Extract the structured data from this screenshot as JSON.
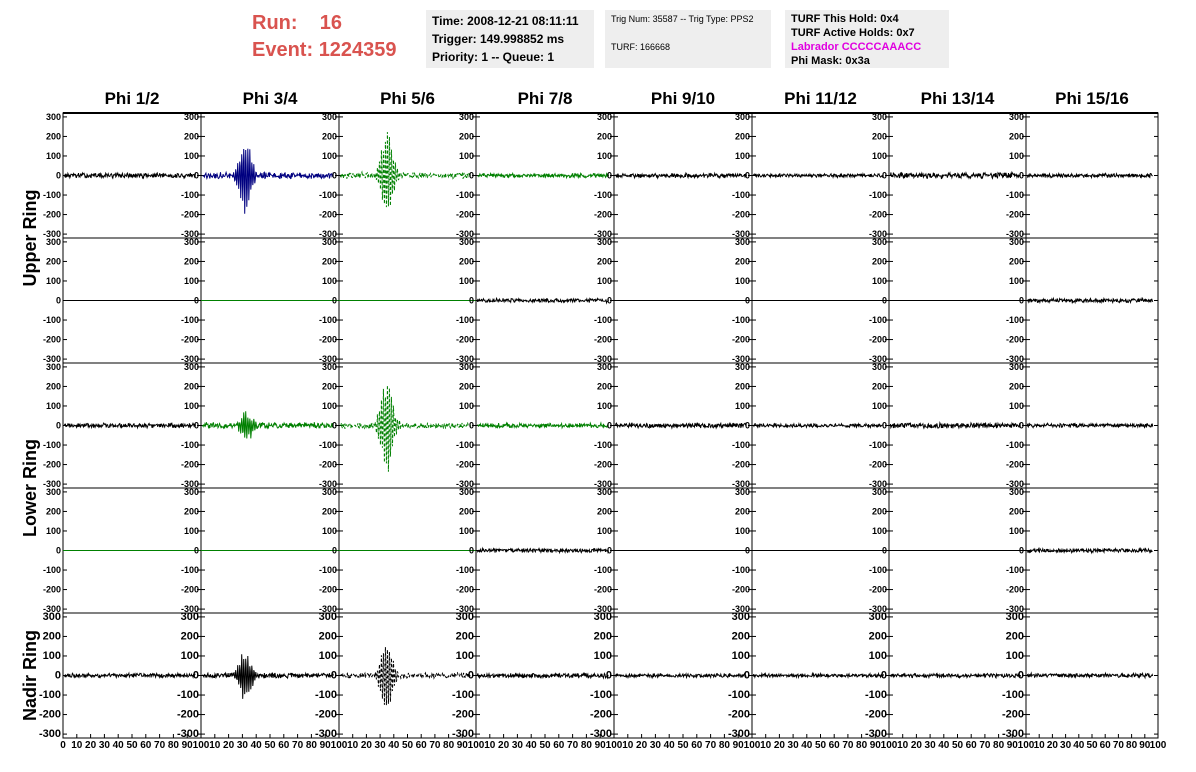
{
  "header": {
    "run_label": "Run:",
    "run_value": "16",
    "event_label": "Event:",
    "event_value": "1224359",
    "time": "Time: 2008-12-21 08:11:11",
    "trigger": "Trigger: 149.998852 ms",
    "priority": "Priority: 1 -- Queue: 1",
    "trig_num": "Trig Num: 35587 -- Trig Type: PPS2",
    "turf": "TURF: 166668",
    "turf_this_hold": "TURF This Hold: 0x4",
    "turf_active_holds": "TURF Active Holds: 0x7",
    "labrador": "Labrador CCCCCAAACC",
    "phi_mask": "Phi Mask: 0x3a"
  },
  "colors": {
    "header_red": "#d9534f",
    "magenta": "#e000e0",
    "blue": "#000080",
    "green": "#008000",
    "black": "#000000",
    "box_bg": "#eeeeee"
  },
  "chart_data": {
    "type": "line",
    "columns": [
      "Phi 1/2",
      "Phi 3/4",
      "Phi 5/6",
      "Phi 7/8",
      "Phi 9/10",
      "Phi 11/12",
      "Phi 13/14",
      "Phi 15/16"
    ],
    "row_groups": [
      "Upper Ring",
      "Lower Ring",
      "Nadir Ring"
    ],
    "xlim": [
      0,
      100
    ],
    "ylim": [
      -320,
      320
    ],
    "y_ticks": [
      300,
      200,
      100,
      0,
      -100,
      -200,
      -300
    ],
    "x_ticks": [
      "0",
      "10",
      "20",
      "30",
      "40",
      "50",
      "60",
      "70",
      "80",
      "90",
      "100"
    ],
    "panels": [
      {
        "row": 0,
        "col": 0,
        "color": "#000000",
        "style": "solid",
        "noise": 10,
        "pulse_center": 0,
        "pulse_amp": 0,
        "flat": false
      },
      {
        "row": 0,
        "col": 1,
        "color": "#000080",
        "style": "solid",
        "noise": 12,
        "pulse_center": 32,
        "pulse_amp": 210,
        "flat": false
      },
      {
        "row": 0,
        "col": 2,
        "color": "#008000",
        "style": "dashed",
        "noise": 12,
        "pulse_center": 35,
        "pulse_amp": 260,
        "flat": false
      },
      {
        "row": 0,
        "col": 3,
        "color": "#008000",
        "style": "solid",
        "noise": 8,
        "pulse_center": 0,
        "pulse_amp": 0,
        "flat": false
      },
      {
        "row": 0,
        "col": 4,
        "color": "#000000",
        "style": "solid",
        "noise": 9,
        "pulse_center": 0,
        "pulse_amp": 0,
        "flat": false
      },
      {
        "row": 0,
        "col": 5,
        "color": "#000000",
        "style": "solid",
        "noise": 7,
        "pulse_center": 0,
        "pulse_amp": 0,
        "flat": false
      },
      {
        "row": 0,
        "col": 6,
        "color": "#000000",
        "style": "solid",
        "noise": 12,
        "pulse_center": 0,
        "pulse_amp": 0,
        "flat": false
      },
      {
        "row": 0,
        "col": 7,
        "color": "#000000",
        "style": "solid",
        "noise": 8,
        "pulse_center": 0,
        "pulse_amp": 0,
        "flat": false
      },
      {
        "row": 1,
        "col": 0,
        "color": "#000000",
        "style": "solid",
        "noise": 0,
        "pulse_center": 0,
        "pulse_amp": 0,
        "flat": true
      },
      {
        "row": 1,
        "col": 1,
        "color": "#008000",
        "style": "solid",
        "noise": 0,
        "pulse_center": 0,
        "pulse_amp": 0,
        "flat": true
      },
      {
        "row": 1,
        "col": 2,
        "color": "#008000",
        "style": "solid",
        "noise": 0,
        "pulse_center": 0,
        "pulse_amp": 0,
        "flat": true
      },
      {
        "row": 1,
        "col": 3,
        "color": "#000000",
        "style": "solid",
        "noise": 8,
        "pulse_center": 0,
        "pulse_amp": 0,
        "flat": false
      },
      {
        "row": 1,
        "col": 4,
        "color": "#000000",
        "style": "solid",
        "noise": 0,
        "pulse_center": 0,
        "pulse_amp": 0,
        "flat": true
      },
      {
        "row": 1,
        "col": 5,
        "color": "#000000",
        "style": "solid",
        "noise": 0,
        "pulse_center": 0,
        "pulse_amp": 0,
        "flat": true
      },
      {
        "row": 1,
        "col": 6,
        "color": "#000000",
        "style": "solid",
        "noise": 0,
        "pulse_center": 0,
        "pulse_amp": 0,
        "flat": true
      },
      {
        "row": 1,
        "col": 7,
        "color": "#000000",
        "style": "solid",
        "noise": 8,
        "pulse_center": 0,
        "pulse_amp": 0,
        "flat": false
      },
      {
        "row": 2,
        "col": 0,
        "color": "#000000",
        "style": "solid",
        "noise": 9,
        "pulse_center": 0,
        "pulse_amp": 0,
        "flat": false
      },
      {
        "row": 2,
        "col": 1,
        "color": "#008000",
        "style": "solid",
        "noise": 12,
        "pulse_center": 33,
        "pulse_amp": 80,
        "flat": false
      },
      {
        "row": 2,
        "col": 2,
        "color": "#008000",
        "style": "dashed",
        "noise": 12,
        "pulse_center": 35,
        "pulse_amp": 280,
        "flat": false
      },
      {
        "row": 2,
        "col": 3,
        "color": "#008000",
        "style": "solid",
        "noise": 9,
        "pulse_center": 0,
        "pulse_amp": 0,
        "flat": false
      },
      {
        "row": 2,
        "col": 4,
        "color": "#000000",
        "style": "solid",
        "noise": 10,
        "pulse_center": 0,
        "pulse_amp": 0,
        "flat": false
      },
      {
        "row": 2,
        "col": 5,
        "color": "#000000",
        "style": "solid",
        "noise": 7,
        "pulse_center": 0,
        "pulse_amp": 0,
        "flat": false
      },
      {
        "row": 2,
        "col": 6,
        "color": "#000000",
        "style": "solid",
        "noise": 11,
        "pulse_center": 0,
        "pulse_amp": 0,
        "flat": false
      },
      {
        "row": 2,
        "col": 7,
        "color": "#000000",
        "style": "solid",
        "noise": 8,
        "pulse_center": 0,
        "pulse_amp": 0,
        "flat": false
      },
      {
        "row": 3,
        "col": 0,
        "color": "#008000",
        "style": "solid",
        "noise": 0,
        "pulse_center": 0,
        "pulse_amp": 0,
        "flat": true
      },
      {
        "row": 3,
        "col": 1,
        "color": "#008000",
        "style": "solid",
        "noise": 0,
        "pulse_center": 0,
        "pulse_amp": 0,
        "flat": true
      },
      {
        "row": 3,
        "col": 2,
        "color": "#008000",
        "style": "solid",
        "noise": 0,
        "pulse_center": 0,
        "pulse_amp": 0,
        "flat": true
      },
      {
        "row": 3,
        "col": 3,
        "color": "#000000",
        "style": "solid",
        "noise": 8,
        "pulse_center": 0,
        "pulse_amp": 0,
        "flat": false
      },
      {
        "row": 3,
        "col": 4,
        "color": "#000000",
        "style": "solid",
        "noise": 0,
        "pulse_center": 0,
        "pulse_amp": 0,
        "flat": true
      },
      {
        "row": 3,
        "col": 5,
        "color": "#000000",
        "style": "solid",
        "noise": 0,
        "pulse_center": 0,
        "pulse_amp": 0,
        "flat": true
      },
      {
        "row": 3,
        "col": 6,
        "color": "#000000",
        "style": "solid",
        "noise": 0,
        "pulse_center": 0,
        "pulse_amp": 0,
        "flat": true
      },
      {
        "row": 3,
        "col": 7,
        "color": "#000000",
        "style": "solid",
        "noise": 8,
        "pulse_center": 0,
        "pulse_amp": 0,
        "flat": false
      },
      {
        "row": 4,
        "col": 0,
        "color": "#000000",
        "style": "solid",
        "noise": 8,
        "pulse_center": 0,
        "pulse_amp": 0,
        "flat": false
      },
      {
        "row": 4,
        "col": 1,
        "color": "#000000",
        "style": "solid",
        "noise": 10,
        "pulse_center": 32,
        "pulse_amp": 140,
        "flat": false
      },
      {
        "row": 4,
        "col": 2,
        "color": "#000000",
        "style": "dashed",
        "noise": 10,
        "pulse_center": 35,
        "pulse_amp": 200,
        "flat": false
      },
      {
        "row": 4,
        "col": 3,
        "color": "#000000",
        "style": "solid",
        "noise": 10,
        "pulse_center": 0,
        "pulse_amp": 0,
        "flat": false
      },
      {
        "row": 4,
        "col": 4,
        "color": "#000000",
        "style": "solid",
        "noise": 8,
        "pulse_center": 0,
        "pulse_amp": 0,
        "flat": false
      },
      {
        "row": 4,
        "col": 5,
        "color": "#000000",
        "style": "solid",
        "noise": 7,
        "pulse_center": 0,
        "pulse_amp": 0,
        "flat": false
      },
      {
        "row": 4,
        "col": 6,
        "color": "#000000",
        "style": "solid",
        "noise": 8,
        "pulse_center": 0,
        "pulse_amp": 0,
        "flat": false
      },
      {
        "row": 4,
        "col": 7,
        "color": "#000000",
        "style": "solid",
        "noise": 8,
        "pulse_center": 0,
        "pulse_amp": 0,
        "flat": false
      }
    ]
  }
}
